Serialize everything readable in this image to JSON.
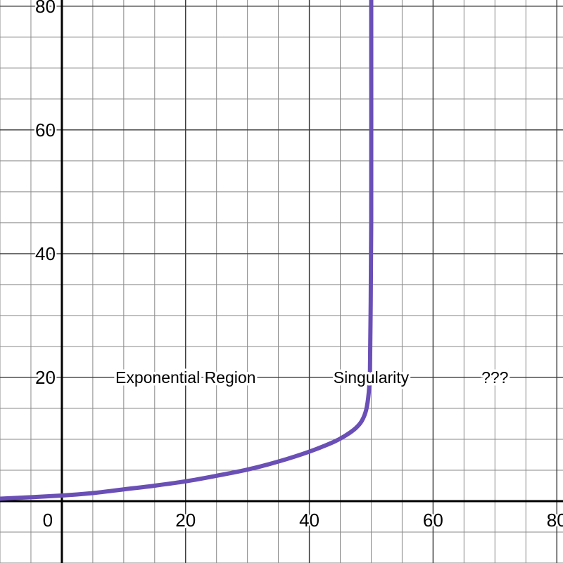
{
  "chart_data": {
    "type": "line",
    "xlim": [
      -10,
      81
    ],
    "ylim": [
      -10,
      81
    ],
    "x_major_step": 20,
    "y_major_step": 20,
    "minor_step": 5,
    "grid": true,
    "x_tick_labels": [
      {
        "value": 0,
        "label": "0"
      },
      {
        "value": 20,
        "label": "20"
      },
      {
        "value": 40,
        "label": "40"
      },
      {
        "value": 60,
        "label": "60"
      },
      {
        "value": 80,
        "label": "80"
      }
    ],
    "y_tick_labels": [
      {
        "value": 20,
        "label": "20"
      },
      {
        "value": 40,
        "label": "40"
      },
      {
        "value": 60,
        "label": "60"
      },
      {
        "value": 80,
        "label": "80"
      }
    ],
    "series": [
      {
        "color": "#6a4fb6",
        "points": [
          [
            -10,
            0.4
          ],
          [
            0,
            0.9
          ],
          [
            5,
            1.3
          ],
          [
            10,
            1.9
          ],
          [
            15,
            2.5
          ],
          [
            20,
            3.2
          ],
          [
            25,
            4.1
          ],
          [
            30,
            5.1
          ],
          [
            35,
            6.4
          ],
          [
            40,
            8.0
          ],
          [
            44,
            9.6
          ],
          [
            46,
            10.7
          ],
          [
            47.5,
            11.8
          ],
          [
            48.5,
            13.0
          ],
          [
            49.2,
            14.8
          ],
          [
            49.6,
            17.5
          ],
          [
            49.8,
            21
          ],
          [
            49.9,
            30
          ],
          [
            50,
            45
          ],
          [
            50,
            81
          ]
        ]
      }
    ],
    "annotations": [
      {
        "text": "Exponential Region",
        "x": 20,
        "y": 20
      },
      {
        "text": "Singularity",
        "x": 50,
        "y": 20
      },
      {
        "text": "???",
        "x": 70,
        "y": 20
      }
    ]
  },
  "colors": {
    "background": "#ffffff",
    "grid_minor": "#8a8a8a",
    "grid_major": "#3a3a3a",
    "axis": "#000000",
    "curve": "#6a4fb6"
  }
}
